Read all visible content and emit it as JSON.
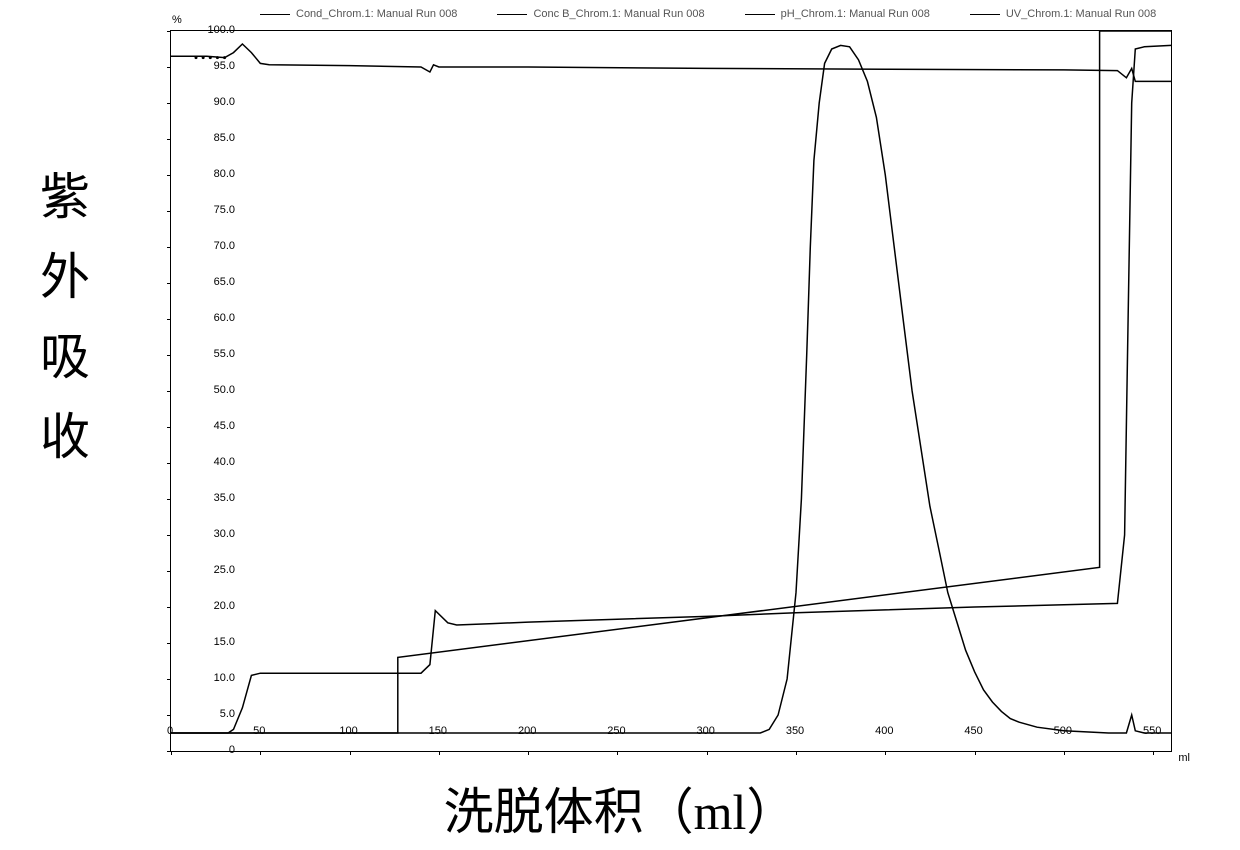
{
  "chart": {
    "type": "line",
    "y_axis_title": "紫外吸收",
    "x_axis_title": "洗脱体积（ml）",
    "y_unit": "%",
    "x_unit": "ml",
    "xlim": [
      0,
      560
    ],
    "ylim": [
      0,
      100
    ],
    "x_ticks": [
      0,
      50,
      100,
      150,
      200,
      250,
      300,
      350,
      400,
      450,
      500,
      550
    ],
    "y_ticks": [
      0,
      5,
      10,
      15,
      20,
      25,
      30,
      35,
      40,
      45,
      50,
      55,
      60,
      65,
      70,
      75,
      80,
      85,
      90,
      95,
      100
    ],
    "y_tick_labels": [
      "0",
      "5.0",
      "10.0",
      "15.0",
      "20.0",
      "25.0",
      "30.0",
      "35.0",
      "40.0",
      "45.0",
      "50.0",
      "55.0",
      "60.0",
      "65.0",
      "70.0",
      "75.0",
      "80.0",
      "85.0",
      "90.0",
      "95.0",
      "100.0"
    ],
    "background_color": "#ffffff",
    "line_color": "#000000",
    "line_width": 1.5,
    "legend_items": [
      "Cond_Chrom.1: Manual Run 008",
      "Conc B_Chrom.1: Manual Run 008",
      "pH_Chrom.1: Manual Run 008",
      "UV_Chrom.1: Manual Run 008"
    ],
    "series": {
      "cond": {
        "label": "Cond_Chrom.1: Manual Run 008",
        "points": [
          [
            0,
            96.5
          ],
          [
            10,
            96.5
          ],
          [
            20,
            96.5
          ],
          [
            30,
            96.3
          ],
          [
            35,
            97
          ],
          [
            40,
            98.2
          ],
          [
            45,
            97
          ],
          [
            50,
            95.5
          ],
          [
            55,
            95.3
          ],
          [
            100,
            95.2
          ],
          [
            140,
            95
          ],
          [
            145,
            94.3
          ],
          [
            147,
            95.3
          ],
          [
            150,
            95
          ],
          [
            200,
            95
          ],
          [
            300,
            94.8
          ],
          [
            400,
            94.7
          ],
          [
            500,
            94.6
          ],
          [
            530,
            94.5
          ],
          [
            535,
            93.5
          ],
          [
            538,
            94.8
          ],
          [
            540,
            93
          ],
          [
            545,
            93
          ],
          [
            560,
            93
          ]
        ]
      },
      "concB": {
        "label": "Conc B_Chrom.1: Manual Run 008",
        "points": [
          [
            0,
            2.5
          ],
          [
            127,
            2.5
          ],
          [
            127,
            13
          ],
          [
            520,
            25.5
          ],
          [
            520,
            100
          ],
          [
            560,
            100
          ]
        ]
      },
      "ph": {
        "label": "pH_Chrom.1: Manual Run 008",
        "points": [
          [
            0,
            2.5
          ],
          [
            32,
            2.5
          ],
          [
            35,
            3
          ],
          [
            40,
            6
          ],
          [
            45,
            10.5
          ],
          [
            50,
            10.8
          ],
          [
            60,
            10.8
          ],
          [
            140,
            10.8
          ],
          [
            145,
            12
          ],
          [
            148,
            19.5
          ],
          [
            155,
            17.8
          ],
          [
            160,
            17.5
          ],
          [
            180,
            17.7
          ],
          [
            200,
            17.9
          ],
          [
            250,
            18.3
          ],
          [
            300,
            18.7
          ],
          [
            350,
            19.2
          ],
          [
            400,
            19.6
          ],
          [
            450,
            20
          ],
          [
            500,
            20.3
          ],
          [
            530,
            20.5
          ],
          [
            534,
            30
          ],
          [
            536,
            60
          ],
          [
            538,
            90
          ],
          [
            540,
            97.5
          ],
          [
            545,
            97.8
          ],
          [
            560,
            98
          ]
        ]
      },
      "uv": {
        "label": "UV_Chrom.1: Manual Run 008",
        "points": [
          [
            0,
            2.5
          ],
          [
            100,
            2.5
          ],
          [
            200,
            2.5
          ],
          [
            300,
            2.5
          ],
          [
            330,
            2.5
          ],
          [
            335,
            3
          ],
          [
            340,
            5
          ],
          [
            345,
            10
          ],
          [
            350,
            22
          ],
          [
            353,
            35
          ],
          [
            356,
            55
          ],
          [
            358,
            70
          ],
          [
            360,
            82
          ],
          [
            363,
            90
          ],
          [
            366,
            95.5
          ],
          [
            370,
            97.5
          ],
          [
            375,
            98
          ],
          [
            380,
            97.8
          ],
          [
            385,
            96
          ],
          [
            390,
            93
          ],
          [
            395,
            88
          ],
          [
            400,
            80
          ],
          [
            405,
            70
          ],
          [
            410,
            60
          ],
          [
            415,
            50
          ],
          [
            420,
            42
          ],
          [
            425,
            34
          ],
          [
            430,
            28
          ],
          [
            435,
            22
          ],
          [
            440,
            18
          ],
          [
            445,
            14
          ],
          [
            450,
            11
          ],
          [
            455,
            8.5
          ],
          [
            460,
            6.8
          ],
          [
            465,
            5.5
          ],
          [
            470,
            4.5
          ],
          [
            475,
            4
          ],
          [
            485,
            3.3
          ],
          [
            500,
            2.8
          ],
          [
            525,
            2.5
          ],
          [
            535,
            2.5
          ],
          [
            538,
            5
          ],
          [
            540,
            2.8
          ],
          [
            545,
            2.5
          ],
          [
            560,
            2.5
          ]
        ]
      }
    }
  }
}
